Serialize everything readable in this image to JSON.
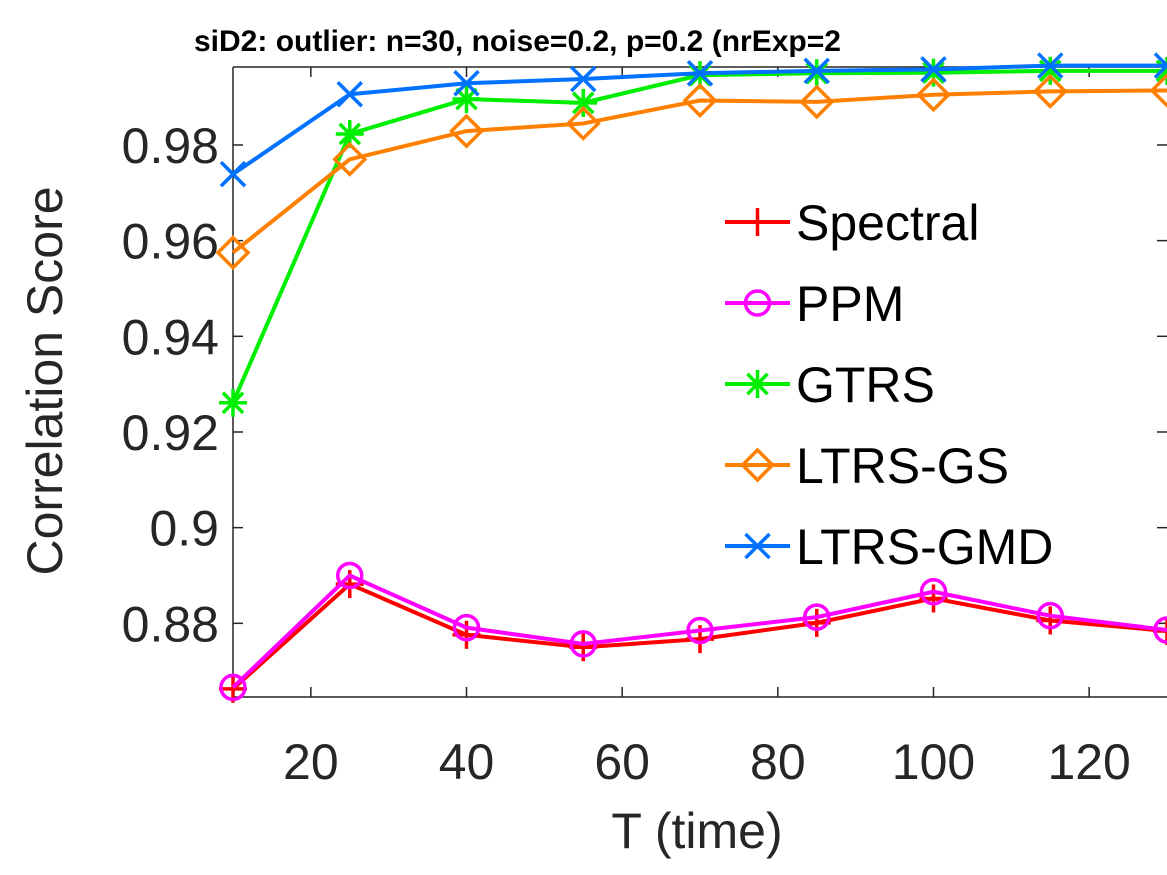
{
  "chart_data": {
    "type": "line",
    "title": "siD2: outlier: n=30, noise=0.2, p=0.2 (nrExp=2",
    "xlabel": "T (time)",
    "ylabel": "Correlation Score",
    "x": [
      10,
      25,
      40,
      55,
      70,
      85,
      100,
      115,
      130
    ],
    "xlim": [
      10,
      130
    ],
    "ylim": [
      0.8646,
      0.9963
    ],
    "xticks": [
      20,
      40,
      60,
      80,
      100,
      120
    ],
    "xtick_labels": [
      "20",
      "40",
      "60",
      "80",
      "100",
      "120"
    ],
    "yticks": [
      0.88,
      0.9,
      0.92,
      0.94,
      0.96,
      0.98
    ],
    "ytick_labels": [
      "0.88",
      "0.9",
      "0.92",
      "0.94",
      "0.96",
      "0.98"
    ],
    "grid": false,
    "legend_position": "right",
    "series": [
      {
        "name": "Spectral",
        "color": "#ff0000",
        "marker": "plus",
        "values": [
          0.8663,
          0.8882,
          0.8776,
          0.875,
          0.8767,
          0.8801,
          0.8852,
          0.8806,
          0.8784
        ]
      },
      {
        "name": "PPM",
        "color": "#ff00ff",
        "marker": "circle",
        "values": [
          0.8666,
          0.89,
          0.8791,
          0.8757,
          0.8785,
          0.8813,
          0.8866,
          0.8816,
          0.8786
        ]
      },
      {
        "name": "GTRS",
        "color": "#00ee00",
        "marker": "asterisk",
        "values": [
          0.9261,
          0.9823,
          0.9896,
          0.9888,
          0.9946,
          0.995,
          0.9951,
          0.9955,
          0.9955
        ]
      },
      {
        "name": "LTRS-GS",
        "color": "#ff8000",
        "marker": "diamond",
        "values": [
          0.9575,
          0.977,
          0.9829,
          0.9845,
          0.9893,
          0.989,
          0.9905,
          0.9912,
          0.9914
        ]
      },
      {
        "name": "LTRS-GMD",
        "color": "#0072ff",
        "marker": "x",
        "values": [
          0.9739,
          0.9906,
          0.9929,
          0.9938,
          0.995,
          0.9955,
          0.9958,
          0.9966,
          0.9966
        ]
      }
    ]
  }
}
